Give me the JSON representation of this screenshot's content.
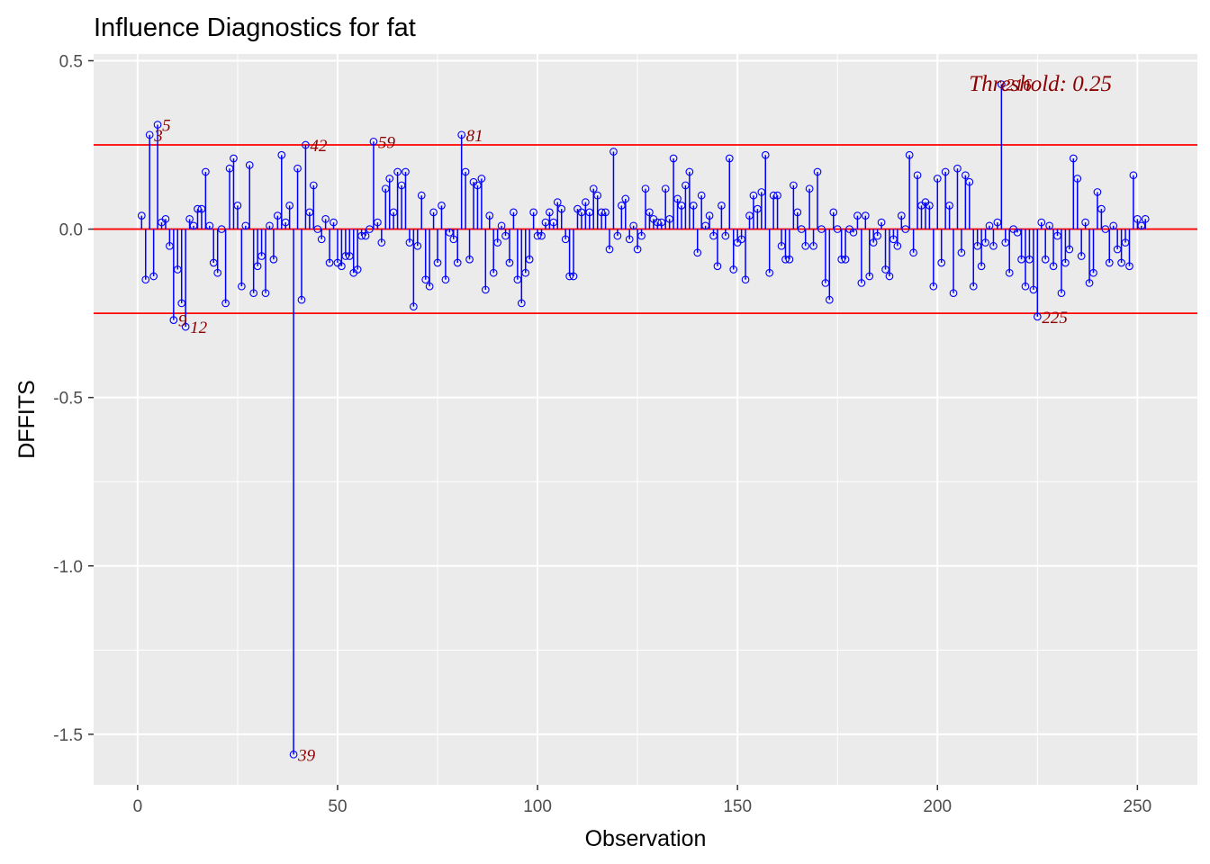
{
  "chart_data": {
    "type": "stem",
    "title": "Influence Diagnostics for fat",
    "xlabel": "Observation",
    "ylabel": "DFFITS",
    "xlim": [
      -11,
      265
    ],
    "ylim": [
      -1.65,
      0.52
    ],
    "x_ticks": [
      0,
      50,
      100,
      150,
      200,
      250
    ],
    "x_tick_labels": [
      "0",
      "50",
      "100",
      "150",
      "200",
      "250"
    ],
    "y_ticks": [
      0.5,
      0.0,
      -0.5,
      -1.0,
      -1.5
    ],
    "y_tick_labels": [
      "0.5",
      "0.0",
      "-0.5",
      "-1.0",
      "-1.5"
    ],
    "threshold": 0.25,
    "threshold_label": "Threshold: 0.25",
    "threshold_lines": [
      0.25,
      0.0,
      -0.25
    ],
    "grid": true,
    "colors": {
      "stem": "#0000ff",
      "threshold": "#ff0000",
      "label": "#8b0000",
      "panel": "#ebebeb",
      "grid": "#ffffff"
    },
    "labeled_points": [
      {
        "x": 3,
        "text": "3"
      },
      {
        "x": 5,
        "text": "5"
      },
      {
        "x": 9,
        "text": "9"
      },
      {
        "x": 12,
        "text": "12"
      },
      {
        "x": 39,
        "text": "39"
      },
      {
        "x": 42,
        "text": "42"
      },
      {
        "x": 59,
        "text": "59"
      },
      {
        "x": 81,
        "text": "81"
      },
      {
        "x": 216,
        "text": "216"
      },
      {
        "x": 225,
        "text": "225"
      }
    ],
    "values": [
      0.04,
      -0.15,
      0.28,
      -0.14,
      0.31,
      0.02,
      0.03,
      -0.05,
      -0.27,
      -0.12,
      -0.22,
      -0.29,
      0.03,
      0.01,
      0.06,
      0.06,
      0.17,
      0.01,
      -0.1,
      -0.13,
      0.0,
      -0.22,
      0.18,
      0.21,
      0.07,
      -0.17,
      0.01,
      0.19,
      -0.19,
      -0.11,
      -0.08,
      -0.19,
      0.01,
      -0.09,
      0.04,
      0.22,
      0.02,
      0.07,
      -1.56,
      0.18,
      -0.21,
      0.25,
      0.05,
      0.13,
      0.0,
      -0.03,
      0.03,
      -0.1,
      0.02,
      -0.1,
      -0.11,
      -0.08,
      -0.08,
      -0.13,
      -0.12,
      -0.02,
      -0.02,
      0.0,
      0.26,
      0.02,
      -0.04,
      0.12,
      0.15,
      0.05,
      0.17,
      0.13,
      0.17,
      -0.04,
      -0.23,
      -0.05,
      0.1,
      -0.15,
      -0.17,
      0.05,
      -0.1,
      0.07,
      -0.15,
      -0.01,
      -0.03,
      -0.1,
      0.28,
      0.17,
      -0.09,
      0.14,
      0.13,
      0.15,
      -0.18,
      0.04,
      -0.13,
      -0.04,
      0.01,
      -0.02,
      -0.1,
      0.05,
      -0.15,
      -0.22,
      -0.13,
      -0.09,
      0.05,
      -0.02,
      -0.02,
      0.02,
      0.05,
      0.02,
      0.08,
      0.06,
      -0.03,
      -0.14,
      -0.14,
      0.06,
      0.05,
      0.08,
      0.05,
      0.12,
      0.1,
      0.05,
      0.05,
      -0.06,
      0.23,
      -0.02,
      0.07,
      0.09,
      -0.03,
      0.01,
      -0.06,
      -0.02,
      0.12,
      0.05,
      0.03,
      0.02,
      0.02,
      0.12,
      0.03,
      0.21,
      0.09,
      0.07,
      0.13,
      0.17,
      0.07,
      -0.07,
      0.1,
      0.01,
      0.04,
      -0.02,
      -0.11,
      0.07,
      -0.02,
      0.21,
      -0.12,
      -0.04,
      -0.03,
      -0.15,
      0.04,
      0.1,
      0.06,
      0.11,
      0.22,
      -0.13,
      0.1,
      0.1,
      -0.05,
      -0.09,
      -0.09,
      0.13,
      0.05,
      0.0,
      -0.05,
      0.12,
      -0.05,
      0.17,
      0.0,
      -0.16,
      -0.21,
      0.05,
      0.0,
      -0.09,
      -0.09,
      0.0,
      -0.01,
      0.04,
      -0.16,
      0.04,
      -0.14,
      -0.04,
      -0.02,
      0.02,
      -0.12,
      -0.14,
      -0.03,
      -0.05,
      0.04,
      0.0,
      0.22,
      -0.07,
      0.16,
      0.07,
      0.08,
      0.07,
      -0.17,
      0.15,
      -0.1,
      0.17,
      0.07,
      -0.19,
      0.18,
      -0.07,
      0.16,
      0.14,
      -0.17,
      -0.05,
      -0.11,
      -0.04,
      0.01,
      -0.05,
      0.02,
      0.43,
      -0.04,
      -0.13,
      0.0,
      -0.01,
      -0.09,
      -0.17,
      -0.09,
      -0.18,
      -0.26,
      0.02,
      -0.09,
      0.01,
      -0.11,
      -0.02,
      -0.19,
      -0.1,
      -0.06,
      0.21,
      0.15,
      -0.08,
      0.02,
      -0.16,
      -0.13,
      0.11,
      0.06,
      0.0,
      -0.1,
      0.01,
      -0.06,
      -0.1,
      -0.04,
      -0.11,
      0.16,
      0.03,
      0.01,
      0.03
    ]
  }
}
